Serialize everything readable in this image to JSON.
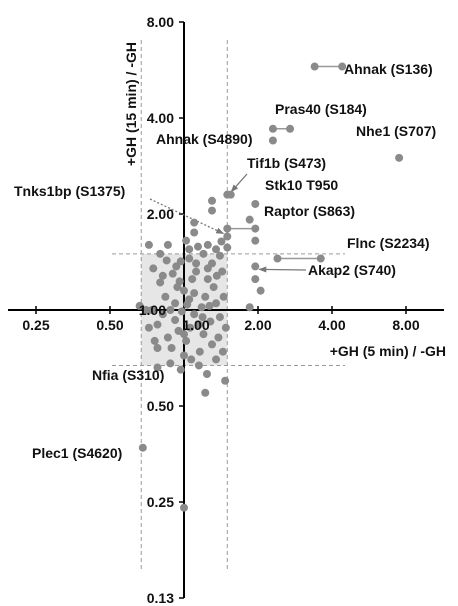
{
  "chart_data": {
    "type": "scatter",
    "x_scale": "log2",
    "y_scale": "log2",
    "xlim": [
      0.25,
      8.0
    ],
    "ylim": [
      0.125,
      8.0
    ],
    "xlabel": "+GH (5 min) / -GH",
    "ylabel": "+GH (15 min) / -GH",
    "x_ticks": [
      {
        "value": 0.25,
        "label": "0.25"
      },
      {
        "value": 0.5,
        "label": "0.50"
      },
      {
        "value": 1.0,
        "label": "1.00"
      },
      {
        "value": 2.0,
        "label": "2.00"
      },
      {
        "value": 4.0,
        "label": "4.00"
      },
      {
        "value": 8.0,
        "label": "8.00"
      }
    ],
    "y_ticks": [
      {
        "value": 0.125,
        "label": "0.13"
      },
      {
        "value": 0.25,
        "label": "0.25"
      },
      {
        "value": 0.5,
        "label": "0.50"
      },
      {
        "value": 1.0,
        "label": "1.00"
      },
      {
        "value": 2.0,
        "label": "2.00"
      },
      {
        "value": 4.0,
        "label": "4.00"
      },
      {
        "value": 8.0,
        "label": "8.00"
      }
    ],
    "threshold_lines": {
      "x": [
        0.67,
        1.5
      ],
      "y": [
        0.67,
        1.5
      ]
    },
    "shaded_region": {
      "x": [
        0.67,
        1.5
      ],
      "y": [
        0.67,
        1.5
      ]
    },
    "marker_color": "#8a8a8a",
    "line_color": "#999999",
    "labeled_points": [
      {
        "label": "Ahnak (S136)",
        "points": [
          [
            3.4,
            5.8
          ],
          [
            4.4,
            5.8
          ]
        ]
      },
      {
        "label": "Pras40 (S184)",
        "points": [
          [
            2.3,
            3.7
          ],
          [
            2.7,
            3.7
          ]
        ]
      },
      {
        "label": "Ahnak (S4890)",
        "points": [
          [
            2.3,
            3.4
          ]
        ]
      },
      {
        "label": "Nhe1 (S707)",
        "points": [
          [
            7.5,
            3.0
          ]
        ]
      },
      {
        "label": "Tif1b (S473)",
        "points": [
          [
            1.5,
            2.3
          ]
        ]
      },
      {
        "label": "Stk10 T950",
        "points": [
          [
            1.95,
            2.15
          ]
        ]
      },
      {
        "label": "Tnks1bp (S1375)",
        "points": [
          [
            1.5,
            1.7
          ]
        ]
      },
      {
        "label": "Raptor (S863)",
        "points": [
          [
            1.5,
            1.8
          ],
          [
            1.95,
            1.8
          ]
        ]
      },
      {
        "label": "Flnc (S2234)",
        "points": [
          [
            2.4,
            1.45
          ],
          [
            3.6,
            1.45
          ]
        ]
      },
      {
        "label": "Akap2 (S740)",
        "points": [
          [
            1.95,
            1.37
          ]
        ]
      },
      {
        "label": "Nfia (S310)",
        "points": [
          [
            0.78,
            0.66
          ]
        ]
      },
      {
        "label": "Plec1 (S4620)",
        "points": [
          [
            0.68,
            0.37
          ]
        ]
      }
    ],
    "other_points": [
      [
        0.75,
        1.35
      ],
      [
        0.8,
        1.22
      ],
      [
        0.84,
        1.1
      ],
      [
        0.88,
        1.0
      ],
      [
        0.92,
        0.93
      ],
      [
        0.95,
        0.86
      ],
      [
        1.0,
        1.15
      ],
      [
        1.05,
        1.08
      ],
      [
        1.1,
        0.97
      ],
      [
        1.15,
        0.9
      ],
      [
        1.2,
        0.84
      ],
      [
        1.25,
        1.25
      ],
      [
        1.3,
        0.78
      ],
      [
        1.35,
        1.05
      ],
      [
        1.4,
        0.95
      ],
      [
        0.82,
        0.97
      ],
      [
        0.9,
        1.3
      ],
      [
        0.97,
        1.42
      ],
      [
        1.02,
        0.8
      ],
      [
        1.12,
        1.4
      ],
      [
        1.18,
        1.02
      ],
      [
        1.28,
        0.92
      ],
      [
        1.32,
        1.18
      ],
      [
        1.38,
        0.82
      ],
      [
        0.86,
        0.82
      ],
      [
        0.94,
        1.18
      ],
      [
        1.08,
        1.25
      ],
      [
        1.22,
        1.1
      ],
      [
        0.78,
        0.9
      ],
      [
        1.45,
        1.1
      ],
      [
        0.89,
        0.76
      ],
      [
        1.0,
        0.72
      ],
      [
        1.16,
        0.74
      ],
      [
        1.25,
        1.35
      ],
      [
        1.05,
        1.45
      ],
      [
        0.92,
        1.05
      ],
      [
        1.1,
        1.13
      ],
      [
        0.98,
        0.99
      ],
      [
        1.2,
        1.5
      ],
      [
        1.3,
        1.4
      ],
      [
        1.43,
        1.32
      ],
      [
        0.74,
        1.0
      ],
      [
        0.8,
        1.5
      ],
      [
        0.86,
        1.6
      ],
      [
        1.02,
        1.65
      ],
      [
        1.14,
        1.58
      ],
      [
        1.42,
        1.64
      ],
      [
        1.5,
        1.57
      ],
      [
        0.7,
        1.0
      ],
      [
        0.66,
        1.03
      ],
      [
        0.72,
        0.88
      ],
      [
        0.76,
        0.8
      ],
      [
        0.97,
        0.65
      ],
      [
        1.07,
        0.7
      ],
      [
        1.15,
        0.67
      ],
      [
        1.24,
        0.63
      ],
      [
        1.35,
        0.7
      ],
      [
        1.47,
        0.6
      ],
      [
        1.22,
        0.55
      ],
      [
        1.1,
        1.88
      ],
      [
        1.3,
        2.2
      ],
      [
        0.82,
        1.28
      ],
      [
        0.96,
        1.23
      ],
      [
        1.06,
        0.88
      ],
      [
        1.19,
        0.95
      ],
      [
        1.27,
        1.03
      ],
      [
        1.36,
        1.28
      ],
      [
        1.12,
        1.32
      ],
      [
        0.93,
        1.37
      ],
      [
        1.03,
        1.04
      ],
      [
        0.85,
        1.43
      ],
      [
        1.4,
        1.48
      ],
      [
        1.48,
        0.88
      ],
      [
        1.44,
        0.74
      ],
      [
        0.88,
        0.68
      ],
      [
        0.78,
        0.76
      ],
      [
        1.0,
        0.84
      ],
      [
        1.0,
        0.24
      ],
      [
        1.95,
        1.25
      ],
      [
        1.85,
        1.02
      ],
      [
        2.05,
        1.15
      ],
      [
        1.95,
        1.65
      ],
      [
        1.85,
        1.92
      ],
      [
        1.55,
        2.3
      ],
      [
        0.72,
        1.6
      ],
      [
        1.25,
        1.6
      ],
      [
        1.05,
        1.55
      ],
      [
        1.35,
        1.55
      ],
      [
        1.3,
        2.05
      ],
      [
        1.1,
        1.75
      ]
    ]
  }
}
